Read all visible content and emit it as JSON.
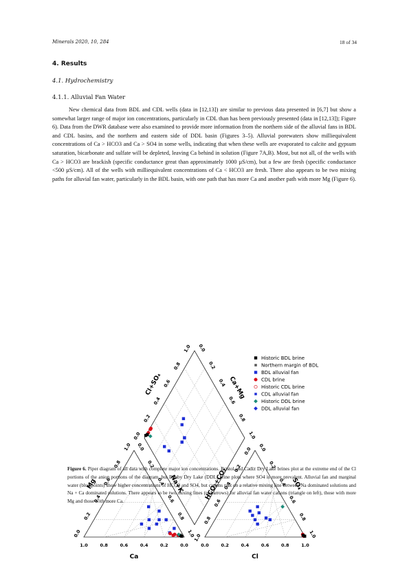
{
  "header": {
    "journal": "Minerals 2020, 10, 284",
    "page": "18 of 34"
  },
  "section": "4. Results",
  "subsection": "4.1. Hydrochemistry",
  "subsubsection": "4.1.1. Alluvial Fan Water",
  "paragraph": "New chemical data from BDL and CDL wells (data in [12,13]) are similar to previous data presented in [6,7] but show a somewhat larger range of major ion concentrations, particularly in CDL than has been previously presented (data in [12,13]); Figure 6). Data from the DWR database were also examined to provide more information from the northern side of the alluvial fans in BDL and CDL basins, and the northern and eastern side of DDL basin (Figures 3–5). Alluvial porewaters show milliequivalent concentrations of Ca > HCO3 and Ca > SO4 in some wells, indicating that when these wells are evaporated to calcite and gypsum saturation, bicarbonate and sulfate will be depleted, leaving Ca behind in solution (Figure 7A,B). Most, but not all, of the wells with Ca > HCO3 are brackish (specific conductance great than approximately 1000 µS/cm), but a few are fresh (specific conductance <500 µS/cm). All of the wells with milliequivalent concentrations of Ca < HCO3 are fresh. There also appears to be two mixing paths for alluvial fan water, particularly in the BDL basin, with one path that has more Ca and another path with more Mg (Figure 6).",
  "figure": {
    "legend": [
      {
        "label": "Historic BDL brine",
        "color": "#000000",
        "marker": "square"
      },
      {
        "label": "Northern margin of BDL",
        "color": "#555555",
        "marker": "square-small"
      },
      {
        "label": "BDL alluvial fan",
        "color": "#1f2fd6",
        "marker": "square"
      },
      {
        "label": "CDL brine",
        "color": "#d8101a",
        "marker": "circle"
      },
      {
        "label": "Historic CDL brine",
        "color": "#d8101a",
        "marker": "circle-open"
      },
      {
        "label": "CDL alluvial fan",
        "color": "#1f2fd6",
        "marker": "square-small"
      },
      {
        "label": "Historic DDL brine",
        "color": "#1c8c7a",
        "marker": "diamond"
      },
      {
        "label": "DDL alluvial fan",
        "color": "#1f2fd6",
        "marker": "diamond"
      }
    ],
    "axes": {
      "cation_mg": "Mg",
      "cation_nak": "Na+K",
      "cation_ca": "Ca",
      "anion_hco3": "HCO₃+CO₃",
      "anion_so4": "SO₄",
      "anion_cl": "Cl",
      "diamond_left": "Cl+SO₄",
      "diamond_right": "Ca+Mg"
    },
    "ticks": [
      "0.0",
      "0.2",
      "0.4",
      "0.6",
      "0.8",
      "1.0"
    ],
    "caption_label": "Figure 6.",
    "caption_text": "Piper diagram of all data with complete major ion concentrations. Bristol and Cadiz Dry Lake brines plot at the extreme end of the Cl portions of the anion portions of the diagram, but Danby Dry Lake (DDL) brine plots where SO4 is more prevalent. Alluvial fan and marginal water (blue points) show higher concentrations of HCO3 and SO4, but cations plot on a relative mixing line between Na dominated solutions and Na + Ca dominated solutions. There appears to be two mixing lines (red arrows) for alluvial fan water cations (triangle on left), those with more Mg and those with more Ca."
  },
  "chart_data": {
    "type": "scatter",
    "title": "",
    "note": "Piper diagram; values are fractions 0–1 of milliequivalents",
    "series": [
      {
        "name": "BDL alluvial fan",
        "cations_ca_mg": [
          [
            0.15,
            0.2
          ],
          [
            0.1,
            0.3
          ],
          [
            0.2,
            0.15
          ],
          [
            0.3,
            0.1
          ],
          [
            0.05,
            0.1
          ],
          [
            0.12,
            0.05
          ],
          [
            0.25,
            0.2
          ],
          [
            0.35,
            0.15
          ],
          [
            0.18,
            0.35
          ],
          [
            0.08,
            0.2
          ]
        ],
        "anions_so4_cl": [
          [
            0.2,
            0.4
          ],
          [
            0.25,
            0.35
          ],
          [
            0.3,
            0.3
          ],
          [
            0.15,
            0.45
          ],
          [
            0.2,
            0.55
          ],
          [
            0.28,
            0.4
          ],
          [
            0.35,
            0.35
          ],
          [
            0.22,
            0.5
          ]
        ]
      },
      {
        "name": "CDL brine",
        "cations_ca_mg": [
          [
            0.05,
            0.02
          ],
          [
            0.08,
            0.03
          ],
          [
            0.1,
            0.02
          ],
          [
            0.12,
            0.04
          ]
        ],
        "anions_so4_cl": [
          [
            0.02,
            0.97
          ],
          [
            0.03,
            0.96
          ],
          [
            0.01,
            0.98
          ]
        ]
      },
      {
        "name": "Historic BDL brine",
        "cations_ca_mg": [
          [
            0.02,
            0.01
          ],
          [
            0.03,
            0.02
          ]
        ],
        "anions_so4_cl": [
          [
            0.01,
            0.99
          ],
          [
            0.02,
            0.97
          ]
        ]
      },
      {
        "name": "Historic DDL brine",
        "cations_ca_mg": [
          [
            0.04,
            0.03
          ]
        ],
        "anions_so4_cl": [
          [
            0.35,
            0.6
          ]
        ]
      }
    ]
  }
}
